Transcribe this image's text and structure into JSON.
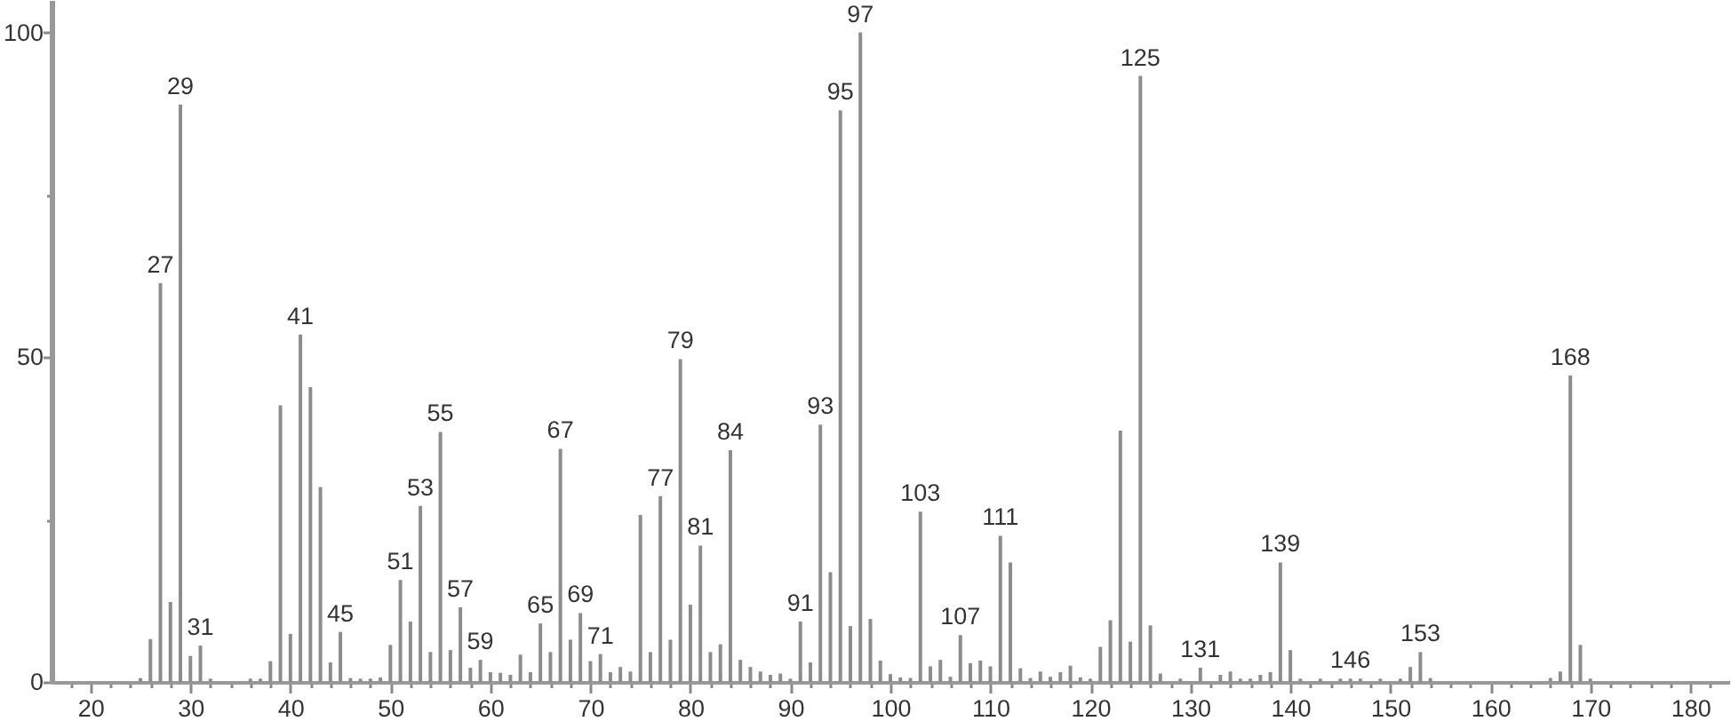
{
  "chart_data": {
    "type": "bar",
    "color": "#8c8c8c",
    "x": [
      25,
      26,
      27,
      28,
      29,
      30,
      31,
      32,
      36,
      37,
      38,
      39,
      40,
      41,
      42,
      43,
      44,
      45,
      46,
      47,
      48,
      49,
      50,
      51,
      52,
      53,
      54,
      55,
      56,
      57,
      58,
      59,
      60,
      61,
      62,
      63,
      64,
      65,
      66,
      67,
      68,
      69,
      70,
      71,
      72,
      73,
      74,
      75,
      76,
      77,
      78,
      79,
      80,
      81,
      82,
      83,
      84,
      85,
      86,
      87,
      88,
      89,
      90,
      91,
      92,
      93,
      94,
      95,
      96,
      97,
      98,
      99,
      100,
      101,
      102,
      103,
      104,
      105,
      106,
      107,
      108,
      109,
      110,
      111,
      112,
      113,
      114,
      115,
      116,
      117,
      118,
      119,
      120,
      121,
      122,
      123,
      124,
      125,
      126,
      127,
      129,
      131,
      133,
      134,
      135,
      136,
      137,
      138,
      139,
      140,
      141,
      143,
      145,
      146,
      147,
      149,
      151,
      152,
      153,
      154,
      166,
      167,
      168,
      169,
      170
    ],
    "values": [
      0.6,
      6.6,
      61.4,
      12.3,
      88.9,
      4.0,
      5.6,
      0.5,
      0.5,
      0.5,
      3.2,
      42.6,
      7.4,
      53.5,
      45.4,
      30.0,
      3.0,
      7.7,
      0.6,
      0.5,
      0.5,
      0.7,
      5.7,
      15.7,
      9.3,
      27.1,
      4.6,
      38.5,
      4.9,
      11.5,
      2.2,
      3.4,
      1.5,
      1.4,
      1.1,
      4.2,
      1.5,
      9.0,
      4.6,
      35.9,
      6.5,
      10.6,
      3.2,
      4.3,
      1.5,
      2.3,
      1.6,
      25.7,
      4.6,
      28.6,
      6.5,
      49.7,
      11.9,
      21.0,
      4.6,
      5.8,
      35.7,
      3.4,
      2.3,
      1.6,
      1.1,
      1.3,
      0.5,
      9.3,
      3.0,
      39.6,
      16.9,
      88.0,
      8.6,
      100,
      9.7,
      3.3,
      1.2,
      0.7,
      0.6,
      26.2,
      2.4,
      3.4,
      0.8,
      7.2,
      2.9,
      3.3,
      2.4,
      22.5,
      18.4,
      2.1,
      0.6,
      1.6,
      0.8,
      1.5,
      2.5,
      0.7,
      0.5,
      5.4,
      9.5,
      38.7,
      6.2,
      93.3,
      8.7,
      1.3,
      0.5,
      2.2,
      1.1,
      1.6,
      0.5,
      0.5,
      1.1,
      1.5,
      18.4,
      4.9,
      0.5,
      0.5,
      0.5,
      0.5,
      0.5,
      0.5,
      0.5,
      2.3,
      4.6,
      0.6,
      0.6,
      1.6,
      47.2,
      5.7,
      0.5
    ],
    "xlim": [
      17,
      183
    ],
    "ylim": [
      0,
      105
    ],
    "xticks": [
      {
        "value": 18,
        "label": null
      },
      20,
      {
        "value": 22,
        "label": null
      },
      {
        "value": 24,
        "label": null
      },
      {
        "value": 26,
        "label": null
      },
      {
        "value": 28,
        "label": null
      },
      30,
      {
        "value": 32,
        "label": null
      },
      {
        "value": 34,
        "label": null
      },
      {
        "value": 36,
        "label": null
      },
      {
        "value": 38,
        "label": null
      },
      40,
      {
        "value": 42,
        "label": null
      },
      {
        "value": 44,
        "label": null
      },
      {
        "value": 46,
        "label": null
      },
      {
        "value": 48,
        "label": null
      },
      50,
      {
        "value": 52,
        "label": null
      },
      {
        "value": 54,
        "label": null
      },
      {
        "value": 56,
        "label": null
      },
      {
        "value": 58,
        "label": null
      },
      60,
      {
        "value": 62,
        "label": null
      },
      {
        "value": 64,
        "label": null
      },
      {
        "value": 66,
        "label": null
      },
      {
        "value": 68,
        "label": null
      },
      70,
      {
        "value": 72,
        "label": null
      },
      {
        "value": 74,
        "label": null
      },
      {
        "value": 76,
        "label": null
      },
      {
        "value": 78,
        "label": null
      },
      80,
      {
        "value": 82,
        "label": null
      },
      {
        "value": 84,
        "label": null
      },
      {
        "value": 86,
        "label": null
      },
      {
        "value": 88,
        "label": null
      },
      90,
      {
        "value": 92,
        "label": null
      },
      {
        "value": 94,
        "label": null
      },
      {
        "value": 96,
        "label": null
      },
      {
        "value": 98,
        "label": null
      },
      100,
      {
        "value": 102,
        "label": null
      },
      {
        "value": 104,
        "label": null
      },
      {
        "value": 106,
        "label": null
      },
      {
        "value": 108,
        "label": null
      },
      110,
      {
        "value": 112,
        "label": null
      },
      {
        "value": 114,
        "label": null
      },
      {
        "value": 116,
        "label": null
      },
      {
        "value": 118,
        "label": null
      },
      120,
      {
        "value": 122,
        "label": null
      },
      {
        "value": 124,
        "label": null
      },
      {
        "value": 126,
        "label": null
      },
      {
        "value": 128,
        "label": null
      },
      130,
      {
        "value": 132,
        "label": null
      },
      {
        "value": 134,
        "label": null
      },
      {
        "value": 136,
        "label": null
      },
      {
        "value": 138,
        "label": null
      },
      140,
      {
        "value": 142,
        "label": null
      },
      {
        "value": 144,
        "label": null
      },
      {
        "value": 146,
        "label": null
      },
      {
        "value": 148,
        "label": null
      },
      150,
      {
        "value": 152,
        "label": null
      },
      {
        "value": 154,
        "label": null
      },
      {
        "value": 156,
        "label": null
      },
      {
        "value": 158,
        "label": null
      },
      160,
      {
        "value": 162,
        "label": null
      },
      {
        "value": 164,
        "label": null
      },
      {
        "value": 166,
        "label": null
      },
      {
        "value": 168,
        "label": null
      },
      170,
      {
        "value": 172,
        "label": null
      },
      {
        "value": 174,
        "label": null
      },
      {
        "value": 176,
        "label": null
      },
      {
        "value": 178,
        "label": null
      },
      180,
      {
        "value": 182,
        "label": null
      }
    ],
    "yticks": [
      0,
      {
        "value": 25,
        "label": null
      },
      50,
      {
        "value": 75,
        "label": null
      },
      100
    ],
    "annotations": [
      {
        "text": "27",
        "x": 27,
        "y": 61.4
      },
      {
        "text": "29",
        "x": 29,
        "y": 88.9
      },
      {
        "text": "31",
        "x": 31,
        "y": 5.6
      },
      {
        "text": "41",
        "x": 41,
        "y": 53.5
      },
      {
        "text": "45",
        "x": 45,
        "y": 7.7
      },
      {
        "text": "51",
        "x": 51,
        "y": 15.7
      },
      {
        "text": "53",
        "x": 53,
        "y": 27.1
      },
      {
        "text": "55",
        "x": 55,
        "y": 38.5
      },
      {
        "text": "57",
        "x": 57,
        "y": 11.5
      },
      {
        "text": "59",
        "x": 59,
        "y": 3.4
      },
      {
        "text": "65",
        "x": 65,
        "y": 9.0
      },
      {
        "text": "67",
        "x": 67,
        "y": 35.9
      },
      {
        "text": "69",
        "x": 69,
        "y": 10.6
      },
      {
        "text": "71",
        "x": 71,
        "y": 4.3
      },
      {
        "text": "77",
        "x": 77,
        "y": 28.6
      },
      {
        "text": "79",
        "x": 79,
        "y": 49.7
      },
      {
        "text": "81",
        "x": 81,
        "y": 21.0
      },
      {
        "text": "84",
        "x": 84,
        "y": 35.7
      },
      {
        "text": "91",
        "x": 91,
        "y": 9.3
      },
      {
        "text": "93",
        "x": 93,
        "y": 39.6
      },
      {
        "text": "95",
        "x": 95,
        "y": 88.0
      },
      {
        "text": "97",
        "x": 97,
        "y": 100
      },
      {
        "text": "103",
        "x": 103,
        "y": 26.2
      },
      {
        "text": "107",
        "x": 107,
        "y": 7.2
      },
      {
        "text": "111",
        "x": 111,
        "y": 22.5
      },
      {
        "text": "125",
        "x": 125,
        "y": 93.3
      },
      {
        "text": "131",
        "x": 131,
        "y": 2.2
      },
      {
        "text": "139",
        "x": 139,
        "y": 18.4
      },
      {
        "text": "146",
        "x": 146,
        "y": 0.5
      },
      {
        "text": "153",
        "x": 153,
        "y": 4.6
      },
      {
        "text": "168",
        "x": 168,
        "y": 47.2
      }
    ]
  }
}
